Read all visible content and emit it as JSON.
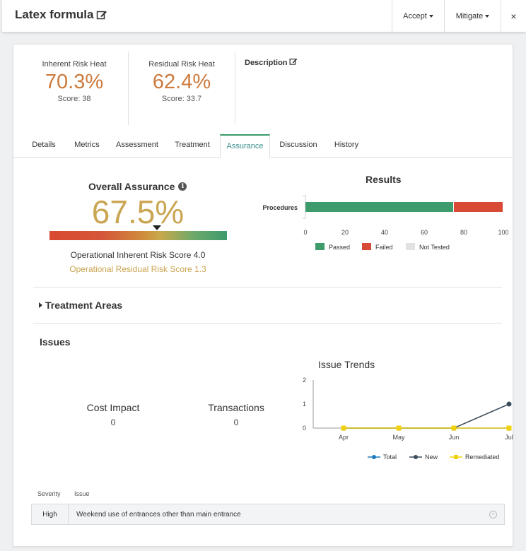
{
  "header": {
    "title": "Latex formula",
    "accept_label": "Accept",
    "mitigate_label": "Mitigate",
    "close_glyph": "×"
  },
  "heat": {
    "inherent": {
      "label": "Inherent Risk Heat",
      "value": "70.3%",
      "score": "Score: 38"
    },
    "residual": {
      "label": "Residual Risk Heat",
      "value": "62.4%",
      "score": "Score: 33.7"
    },
    "description_label": "Description"
  },
  "tabs": [
    {
      "label": "Details"
    },
    {
      "label": "Metrics"
    },
    {
      "label": "Assessment"
    },
    {
      "label": "Treatment"
    },
    {
      "label": "Assurance",
      "active": true
    },
    {
      "label": "Discussion"
    },
    {
      "label": "History"
    }
  ],
  "assurance": {
    "title": "Overall Assurance",
    "info_glyph": "i",
    "value": "67.5%",
    "gauge_fraction": 0.675,
    "operational_inherent": "Operational Inherent Risk Score 4.0",
    "operational_residual": "Operational Residual Risk Score 1.3"
  },
  "results": {
    "title": "Results",
    "legend": [
      "Passed",
      "Failed",
      "Not Tested"
    ]
  },
  "treatment_areas": {
    "label": "Treatment Areas"
  },
  "issues": {
    "heading": "Issues",
    "cost_impact": {
      "label": "Cost Impact",
      "value": "0"
    },
    "transactions": {
      "label": "Transactions",
      "value": "0"
    },
    "trend_title": "Issue Trends",
    "table_headers": {
      "severity": "Severity",
      "issue": "Issue"
    },
    "rows": [
      {
        "severity": "High",
        "issue": "Weekend use of entrances other than main entrance"
      }
    ]
  },
  "colors": {
    "passed": "#3e9b6c",
    "failed": "#d84a36",
    "not_tested": "#e3e1e1",
    "heat_value": "#cc7a3d",
    "assurance_value": "#caa552",
    "total": "#1f7bbf",
    "new": "#3d4d5c",
    "remediated": "#f0d10f"
  },
  "chart_data": [
    {
      "type": "bar",
      "orientation": "horizontal",
      "stacked": true,
      "title": "Results",
      "categories": [
        "Procedures"
      ],
      "series": [
        {
          "name": "Passed",
          "values": [
            75
          ]
        },
        {
          "name": "Failed",
          "values": [
            25
          ]
        },
        {
          "name": "Not Tested",
          "values": [
            0
          ]
        }
      ],
      "xlim": [
        0,
        100
      ],
      "xticks": [
        "0",
        "20",
        "40",
        "60",
        "80",
        "100"
      ],
      "legend": "bottom"
    },
    {
      "type": "line",
      "title": "Issue Trends",
      "x": [
        "Apr",
        "May",
        "Jun",
        "Jul"
      ],
      "series": [
        {
          "name": "Total",
          "values": [
            0,
            0,
            0,
            0
          ]
        },
        {
          "name": "New",
          "values": [
            0,
            0,
            0,
            1
          ]
        },
        {
          "name": "Remediated",
          "values": [
            0,
            0,
            0,
            0
          ]
        }
      ],
      "ylim": [
        0,
        2
      ],
      "yticks": [
        "0",
        "1",
        "2"
      ],
      "legend": "bottom",
      "grid": false
    }
  ]
}
